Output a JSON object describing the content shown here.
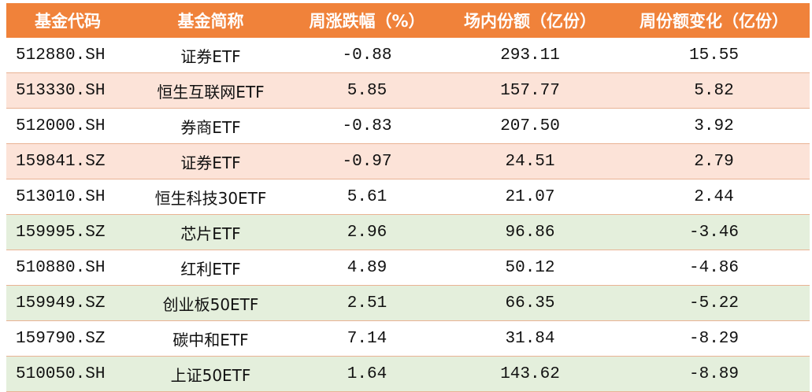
{
  "table": {
    "headers": [
      "基金代码",
      "基金简称",
      "周涨跌幅（%）",
      "场内份额（亿份）",
      "周份额变化（亿份）"
    ],
    "rows": [
      {
        "code": "512880.SH",
        "name": "证券ETF",
        "weekly_change_pct": "-0.88",
        "shares": "293.11",
        "share_change": "15.55",
        "highlight": "none"
      },
      {
        "code": "513330.SH",
        "name": "恒生互联网ETF",
        "weekly_change_pct": "5.85",
        "shares": "157.77",
        "share_change": "5.82",
        "highlight": "pink"
      },
      {
        "code": "512000.SH",
        "name": "券商ETF",
        "weekly_change_pct": "-0.83",
        "shares": "207.50",
        "share_change": "3.92",
        "highlight": "none"
      },
      {
        "code": "159841.SZ",
        "name": "证券ETF",
        "weekly_change_pct": "-0.97",
        "shares": "24.51",
        "share_change": "2.79",
        "highlight": "pink"
      },
      {
        "code": "513010.SH",
        "name": "恒生科技30ETF",
        "weekly_change_pct": "5.61",
        "shares": "21.07",
        "share_change": "2.44",
        "highlight": "none"
      },
      {
        "code": "159995.SZ",
        "name": "芯片ETF",
        "weekly_change_pct": "2.96",
        "shares": "96.86",
        "share_change": "-3.46",
        "highlight": "green"
      },
      {
        "code": "510880.SH",
        "name": "红利ETF",
        "weekly_change_pct": "4.89",
        "shares": "50.12",
        "share_change": "-4.86",
        "highlight": "none"
      },
      {
        "code": "159949.SZ",
        "name": "创业板50ETF",
        "weekly_change_pct": "2.51",
        "shares": "66.35",
        "share_change": "-5.22",
        "highlight": "green"
      },
      {
        "code": "159790.SZ",
        "name": "碳中和ETF",
        "weekly_change_pct": "7.14",
        "shares": "31.84",
        "share_change": "-8.29",
        "highlight": "none"
      },
      {
        "code": "510050.SH",
        "name": "上证50ETF",
        "weekly_change_pct": "1.64",
        "shares": "143.62",
        "share_change": "-8.89",
        "highlight": "green"
      }
    ]
  },
  "colors": {
    "header_bg": "#f0823a",
    "header_text": "#ffffff",
    "highlight_pink": "#fce3d8",
    "highlight_green": "#e4efdc",
    "divider": "#e9b394"
  }
}
